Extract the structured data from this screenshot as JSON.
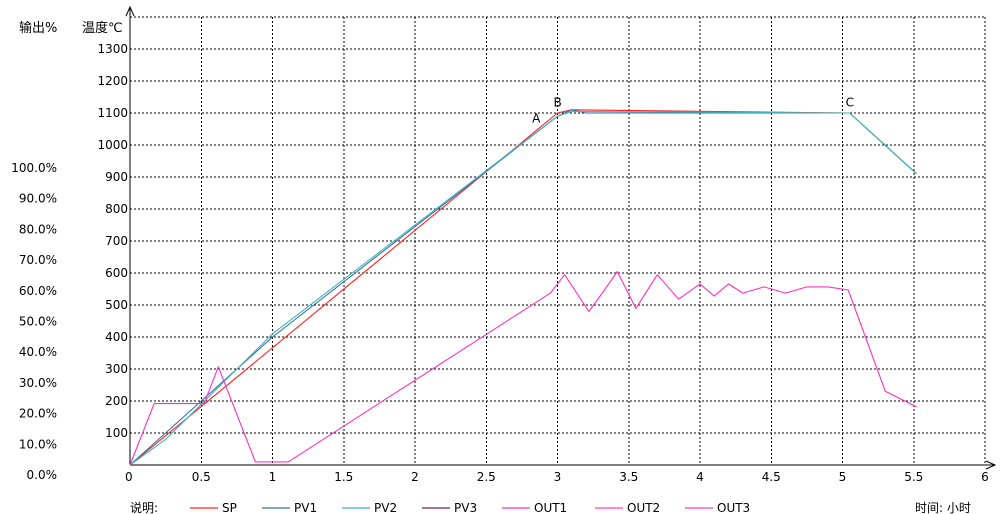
{
  "header": {
    "output_label": "输出%",
    "temp_label": "温度℃"
  },
  "footer": {
    "legend_label": "说明:",
    "time_label": "时间: 小时"
  },
  "chart_data": {
    "type": "line",
    "x_ticks": [
      "0",
      "0.5",
      "1",
      "1.5",
      "2",
      "2.5",
      "3",
      "3.5",
      "4",
      "4.5",
      "5",
      "5.5",
      "6"
    ],
    "x_tick_values": [
      0,
      0.5,
      1,
      1.5,
      2,
      2.5,
      3,
      3.5,
      4,
      4.5,
      5,
      5.5,
      6
    ],
    "xlim": [
      0,
      6
    ],
    "y_temp_ticks": [
      "100",
      "200",
      "300",
      "400",
      "500",
      "600",
      "700",
      "800",
      "900",
      "1000",
      "1100",
      "1200",
      "1300"
    ],
    "y_temp_values": [
      100,
      200,
      300,
      400,
      500,
      600,
      700,
      800,
      900,
      1000,
      1100,
      1200,
      1300
    ],
    "y_temp_lim": [
      0,
      1400
    ],
    "y_output_ticks": [
      "0.0%",
      "10.0%",
      "20.0%",
      "30.0%",
      "40.0%",
      "50.0%",
      "60.0%",
      "70.0%",
      "80.0%",
      "90.0%",
      "100.0%"
    ],
    "y_output_values": [
      0,
      10,
      20,
      30,
      40,
      50,
      60,
      70,
      80,
      90,
      100
    ],
    "grid": true,
    "legend_position": "bottom",
    "point_labels": [
      {
        "text": "A",
        "x": 2.85,
        "y": 1070
      },
      {
        "text": "B",
        "x": 3.0,
        "y": 1120
      },
      {
        "text": "C",
        "x": 5.05,
        "y": 1120
      }
    ],
    "series": [
      {
        "name": "SP",
        "color": "#ff2020",
        "axis": "temp",
        "x": [
          0,
          0.52,
          3.0,
          3.1,
          5.05,
          5.52
        ],
        "y": [
          0,
          190,
          1100,
          1110,
          1100,
          910
        ]
      },
      {
        "name": "PV1",
        "color": "#3a6ea5",
        "axis": "temp",
        "x": [
          0,
          0.5,
          1.0,
          3.0,
          3.1,
          3.2,
          5.0,
          5.05,
          5.52
        ],
        "y": [
          0,
          200,
          400,
          1090,
          1110,
          1100,
          1100,
          1100,
          910
        ]
      },
      {
        "name": "PV2",
        "color": "#3fb8c0",
        "axis": "temp",
        "x": [
          0,
          0.25,
          0.5,
          1.0,
          3.0,
          3.1,
          5.05,
          5.52
        ],
        "y": [
          0,
          80,
          190,
          410,
          1090,
          1105,
          1100,
          910
        ]
      },
      {
        "name": "PV3",
        "color": "#7a1f5c",
        "axis": "temp",
        "x": [],
        "y": []
      },
      {
        "name": "OUT1",
        "color": "#ff30c0",
        "axis": "output",
        "x": [
          0,
          0.17,
          0.52,
          0.62,
          0.88,
          1.11,
          2.95,
          3.05,
          3.22,
          3.33,
          3.42,
          3.55,
          3.7,
          3.85,
          4.0,
          4.1,
          4.2,
          4.3,
          4.45,
          4.6,
          4.75,
          4.9,
          5.04,
          5.3,
          5.52
        ],
        "y": [
          0,
          20,
          20,
          32,
          1,
          1,
          56,
          62,
          50,
          57,
          63,
          51,
          62,
          54,
          59,
          55,
          59,
          56,
          58,
          56,
          58,
          58,
          57,
          24,
          19
        ]
      },
      {
        "name": "OUT2",
        "color": "#ff40c0",
        "axis": "output",
        "x": [],
        "y": []
      },
      {
        "name": "OUT3",
        "color": "#ff40c0",
        "axis": "output",
        "x": [],
        "y": []
      }
    ]
  }
}
